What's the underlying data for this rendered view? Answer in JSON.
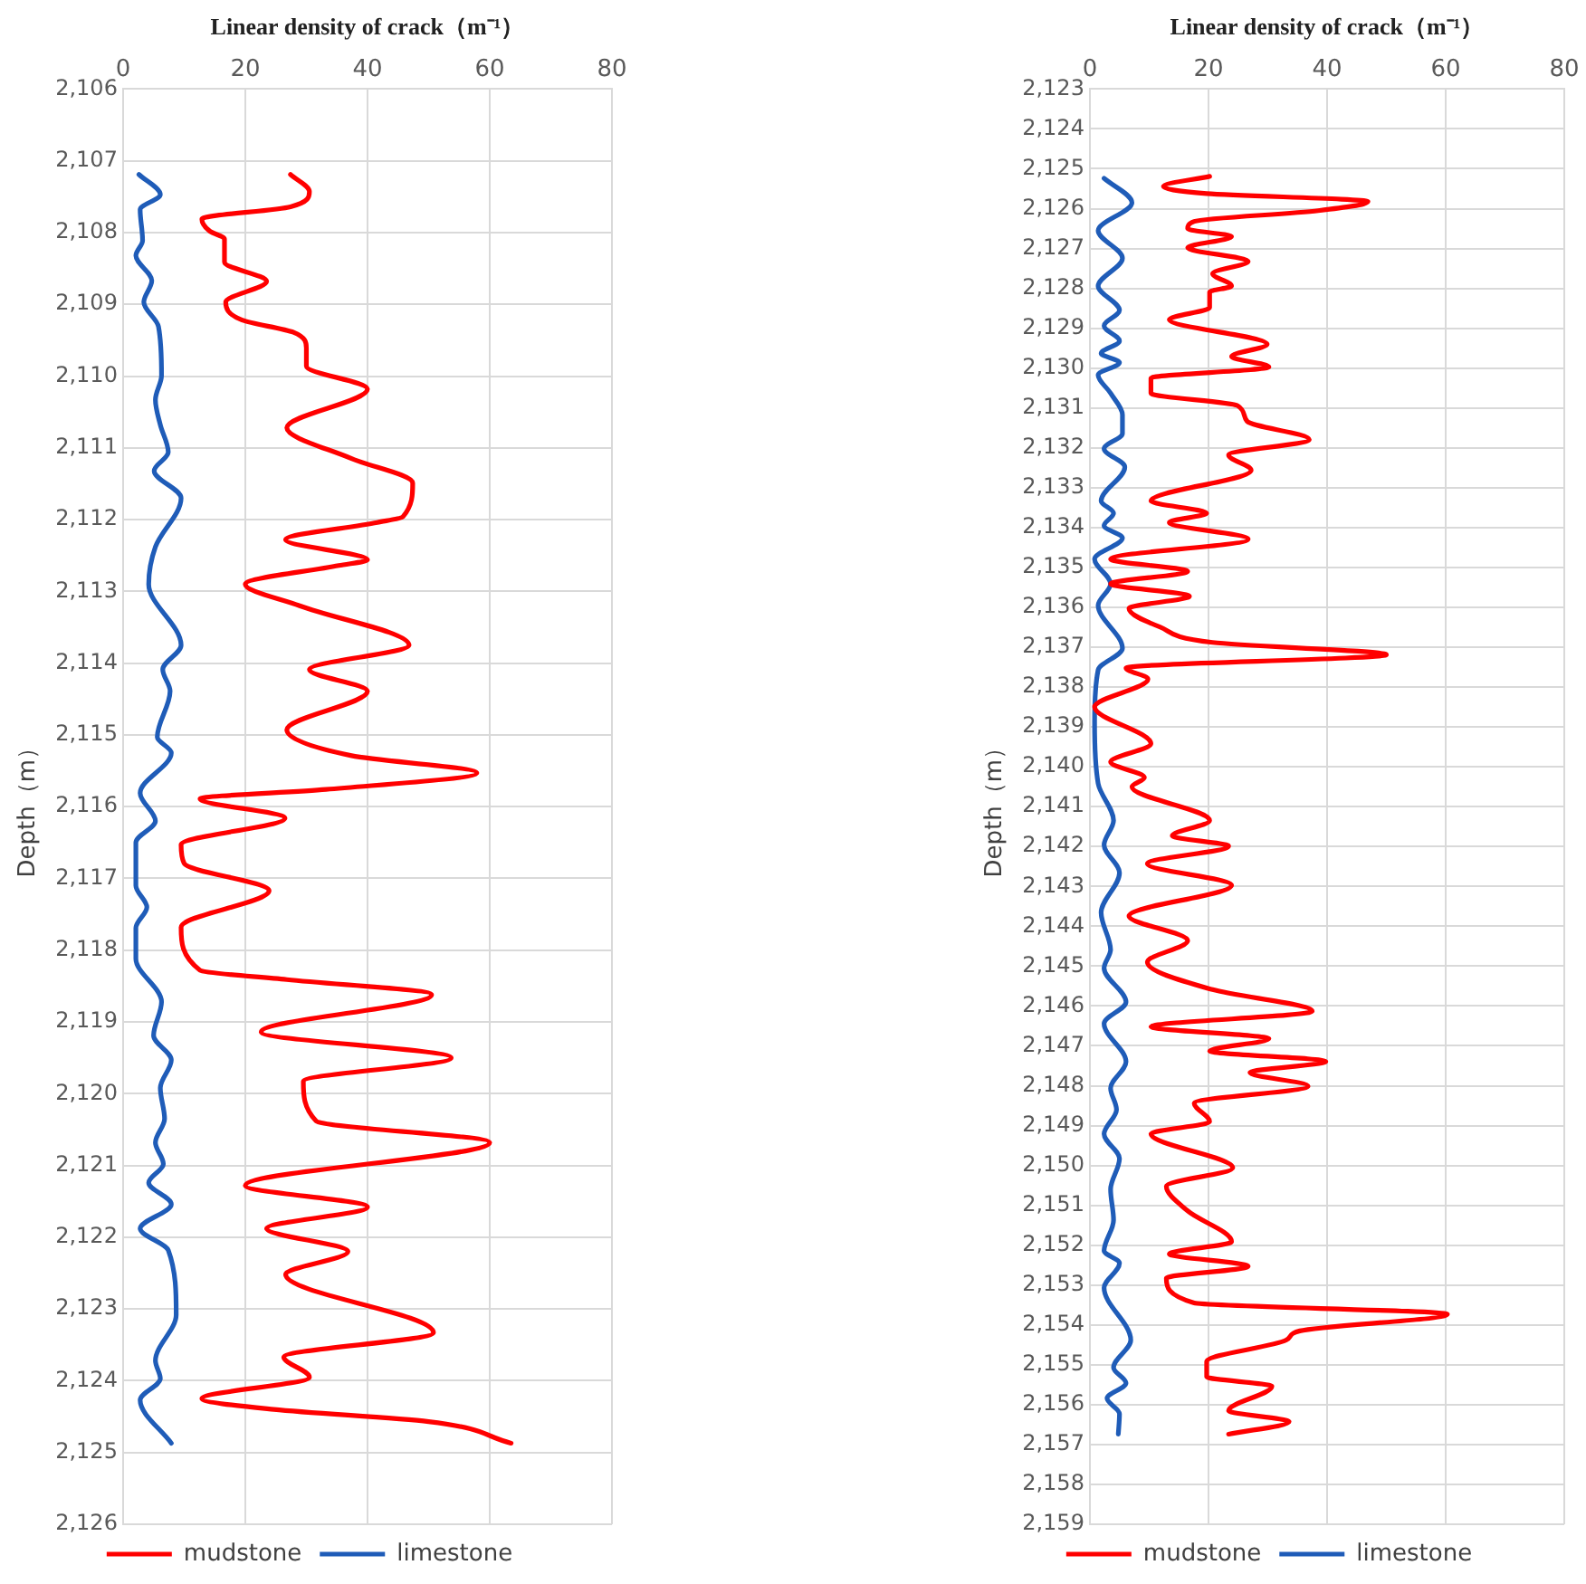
{
  "chart_data": [
    {
      "type": "line",
      "xlabel": "Linear density of crack（m⁻¹）",
      "ylabel": "Depth（m）",
      "xlim": [
        0,
        80
      ],
      "xticks": [
        0,
        20,
        40,
        60,
        80
      ],
      "ylim": [
        2126,
        2106
      ],
      "yticks": [
        {
          "value": 2106,
          "label": "2,106"
        },
        {
          "value": 2107,
          "label": "2,107"
        },
        {
          "value": 2108,
          "label": "2,108"
        },
        {
          "value": 2109,
          "label": "2,109"
        },
        {
          "value": 2110,
          "label": "2,110"
        },
        {
          "value": 2111,
          "label": "2,111"
        },
        {
          "value": 2112,
          "label": "2,112"
        },
        {
          "value": 2113,
          "label": "2,113"
        },
        {
          "value": 2114,
          "label": "2,114"
        },
        {
          "value": 2115,
          "label": "2,115"
        },
        {
          "value": 2116,
          "label": "2,116"
        },
        {
          "value": 2117,
          "label": "2,117"
        },
        {
          "value": 2118,
          "label": "2,118"
        },
        {
          "value": 2119,
          "label": "2,119"
        },
        {
          "value": 2120,
          "label": "2,120"
        },
        {
          "value": 2121,
          "label": "2,121"
        },
        {
          "value": 2122,
          "label": "2,122"
        },
        {
          "value": 2123,
          "label": "2,123"
        },
        {
          "value": 2124,
          "label": "2,124"
        },
        {
          "value": 2125,
          "label": "2,125"
        },
        {
          "value": 2126,
          "label": "2,126"
        }
      ],
      "grid": true,
      "legend": "bottom",
      "marker": "none",
      "line_style": "solid",
      "series": [
        {
          "name": "mudstone",
          "color": "#ff0000",
          "x": [
            27.4,
            30.5,
            27.4,
            12.9,
            14.2,
            16.6,
            16.6,
            23.5,
            16.8,
            19.5,
            27.9,
            30,
            30,
            40,
            26.8,
            37.4,
            47.4,
            45.8,
            41.6,
            26.6,
            40,
            35.3,
            20,
            28.9,
            46.8,
            30.5,
            40,
            26.8,
            37.4,
            57.9,
            33.2,
            12.6,
            26.5,
            9.5,
            10,
            23.9,
            9.5,
            12.6,
            26.8,
            50.5,
            22.6,
            53.7,
            29.5,
            31.6,
            60,
            20,
            40,
            23.5,
            36.8,
            26.6,
            50.8,
            26.3,
            30.5,
            12.9,
            24.7,
            50,
            63.5
          ],
          "values": [
            2107.19,
            2107.43,
            2107.64,
            2107.81,
            2107.98,
            2108.09,
            2108.41,
            2108.68,
            2108.97,
            2109.22,
            2109.39,
            2109.61,
            2109.86,
            2110.18,
            2110.72,
            2111.15,
            2111.49,
            2111.96,
            2112.04,
            2112.28,
            2112.56,
            2112.64,
            2112.9,
            2113.2,
            2113.75,
            2114.09,
            2114.39,
            2114.93,
            2115.29,
            2115.53,
            2115.76,
            2115.89,
            2116.16,
            2116.53,
            2116.79,
            2117.17,
            2117.68,
            2118.28,
            2118.41,
            2118.62,
            2119.14,
            2119.5,
            2119.83,
            2120.38,
            2120.68,
            2121.28,
            2121.58,
            2121.88,
            2122.2,
            2122.52,
            2123.33,
            2123.67,
            2123.95,
            2124.25,
            2124.4,
            2124.57,
            2124.87
          ]
        },
        {
          "name": "limestone",
          "color": "#1f5cb8",
          "x": [
            2.6,
            6.1,
            2.8,
            3.2,
            2.1,
            4.7,
            3.4,
            5.8,
            6.3,
            5.3,
            6.1,
            7.4,
            5.1,
            9.5,
            5.3,
            4.2,
            9.5,
            6.5,
            7.7,
            5.6,
            7.9,
            2.8,
            5.3,
            2.1,
            2.1,
            3.9,
            2.1,
            2.1,
            6.3,
            5,
            7.9,
            6.1,
            6.8,
            5.3,
            6.6,
            4.2,
            7.9,
            2.8,
            7.4,
            8.7,
            5.3,
            6.1,
            2.8,
            7.9
          ],
          "values": [
            2107.19,
            2107.47,
            2107.68,
            2108.11,
            2108.32,
            2108.67,
            2108.97,
            2109.31,
            2109.99,
            2110.33,
            2110.68,
            2111.06,
            2111.32,
            2111.7,
            2112.38,
            2112.9,
            2113.75,
            2114.09,
            2114.39,
            2115.03,
            2115.25,
            2115.81,
            2116.2,
            2116.5,
            2117.1,
            2117.4,
            2117.69,
            2118.12,
            2118.72,
            2119.19,
            2119.53,
            2119.92,
            2120.35,
            2120.68,
            2120.98,
            2121.24,
            2121.54,
            2121.88,
            2122.18,
            2123.08,
            2123.72,
            2123.97,
            2124.27,
            2124.87
          ]
        }
      ]
    },
    {
      "type": "line",
      "xlabel": "Linear density of crack（m⁻¹）",
      "ylabel": "Depth（m）",
      "xlim": [
        0,
        80
      ],
      "xticks": [
        0,
        20,
        40,
        60,
        80
      ],
      "ylim": [
        2159,
        2123
      ],
      "yticks": [
        {
          "value": 2123,
          "label": "2,123"
        },
        {
          "value": 2124,
          "label": "2,124"
        },
        {
          "value": 2125,
          "label": "2,125"
        },
        {
          "value": 2126,
          "label": "2,126"
        },
        {
          "value": 2127,
          "label": "2,127"
        },
        {
          "value": 2128,
          "label": "2,128"
        },
        {
          "value": 2129,
          "label": "2,129"
        },
        {
          "value": 2130,
          "label": "2,130"
        },
        {
          "value": 2131,
          "label": "2,131"
        },
        {
          "value": 2132,
          "label": "2,132"
        },
        {
          "value": 2133,
          "label": "2,133"
        },
        {
          "value": 2134,
          "label": "2,134"
        },
        {
          "value": 2135,
          "label": "2,135"
        },
        {
          "value": 2136,
          "label": "2,136"
        },
        {
          "value": 2137,
          "label": "2,137"
        },
        {
          "value": 2138,
          "label": "2,138"
        },
        {
          "value": 2139,
          "label": "2,139"
        },
        {
          "value": 2140,
          "label": "2,140"
        },
        {
          "value": 2141,
          "label": "2,141"
        },
        {
          "value": 2142,
          "label": "2,142"
        },
        {
          "value": 2143,
          "label": "2,143"
        },
        {
          "value": 2144,
          "label": "2,144"
        },
        {
          "value": 2145,
          "label": "2,145"
        },
        {
          "value": 2146,
          "label": "2,146"
        },
        {
          "value": 2147,
          "label": "2,147"
        },
        {
          "value": 2148,
          "label": "2,148"
        },
        {
          "value": 2149,
          "label": "2,149"
        },
        {
          "value": 2150,
          "label": "2,150"
        },
        {
          "value": 2151,
          "label": "2,151"
        },
        {
          "value": 2152,
          "label": "2,152"
        },
        {
          "value": 2153,
          "label": "2,153"
        },
        {
          "value": 2154,
          "label": "2,154"
        },
        {
          "value": 2155,
          "label": "2,155"
        },
        {
          "value": 2156,
          "label": "2,156"
        },
        {
          "value": 2157,
          "label": "2,157"
        },
        {
          "value": 2158,
          "label": "2,158"
        },
        {
          "value": 2159,
          "label": "2,159"
        }
      ],
      "grid": true,
      "legend": "bottom",
      "marker": "none",
      "line_style": "solid",
      "series": [
        {
          "name": "mudstone",
          "color": "#ff0000",
          "x": [
            20.2,
            12.4,
            19.7,
            46.9,
            38.5,
            17.6,
            16.5,
            23.9,
            16.5,
            26.7,
            20.7,
            23.9,
            20.2,
            20.2,
            13.4,
            29.9,
            23.9,
            30.2,
            10.3,
            10.3,
            24.9,
            26.5,
            37,
            23.4,
            27.2,
            10.3,
            19.7,
            13.4,
            26.7,
            3.5,
            16.5,
            3.5,
            16.8,
            6.6,
            11.8,
            20.7,
            50,
            6.1,
            9.8,
            0.8,
            10.3,
            3.5,
            9.2,
            7.1,
            20.2,
            13.9,
            23.4,
            9.7,
            23.9,
            6.6,
            16.5,
            9.7,
            20.7,
            37.5,
            10.3,
            30.2,
            20.2,
            39.8,
            27,
            36.8,
            17.6,
            20.2,
            10.3,
            24.1,
            12.9,
            16.5,
            23.9,
            13.4,
            26.7,
            12.9,
            17.6,
            60.3,
            35.4,
            33.1,
            19.7,
            19.7,
            30.7,
            23.4,
            33.6,
            23.4
          ],
          "values": [
            2125.19,
            2125.44,
            2125.62,
            2125.82,
            2126.05,
            2126.32,
            2126.5,
            2126.7,
            2126.98,
            2127.32,
            2127.63,
            2127.94,
            2128.09,
            2128.48,
            2128.78,
            2129.4,
            2129.71,
            2129.97,
            2130.25,
            2130.63,
            2130.94,
            2131.33,
            2131.79,
            2132.18,
            2132.56,
            2133.33,
            2133.64,
            2133.87,
            2134.29,
            2134.79,
            2135.1,
            2135.41,
            2135.72,
            2136.03,
            2136.49,
            2136.88,
            2137.19,
            2137.52,
            2137.8,
            2138.5,
            2139.42,
            2139.88,
            2140.27,
            2140.5,
            2141.35,
            2141.73,
            2141.99,
            2142.43,
            2142.97,
            2143.74,
            2144.36,
            2144.9,
            2145.59,
            2146.13,
            2146.52,
            2146.82,
            2147.13,
            2147.39,
            2147.67,
            2148.01,
            2148.44,
            2148.9,
            2149.21,
            2150.06,
            2150.52,
            2151.14,
            2151.91,
            2152.22,
            2152.53,
            2152.83,
            2153.45,
            2153.73,
            2154.15,
            2154.38,
            2154.92,
            2155.3,
            2155.54,
            2156.15,
            2156.43,
            2156.74
          ]
        },
        {
          "name": "limestone",
          "color": "#1f5cb8",
          "x": [
            2.4,
            7.1,
            1.4,
            5.5,
            1.4,
            5,
            2.4,
            5,
            1.9,
            5,
            1.4,
            3.5,
            5.5,
            5.5,
            2.4,
            5.9,
            1.9,
            4,
            2.4,
            5.5,
            0.8,
            3.5,
            1.4,
            5.5,
            1.4,
            0.8,
            1.4,
            4,
            2.4,
            5,
            1.9,
            3.5,
            2.4,
            6.1,
            2.4,
            6.1,
            3.5,
            4.5,
            2.4,
            5,
            3.5,
            4,
            2.4,
            5,
            2.4,
            6.9,
            4,
            6.1,
            2.9,
            5,
            4.8
          ],
          "values": [
            2125.24,
            2125.85,
            2126.55,
            2127.24,
            2127.94,
            2128.55,
            2128.94,
            2129.32,
            2129.63,
            2129.86,
            2130.17,
            2130.63,
            2131.17,
            2131.64,
            2132.02,
            2132.48,
            2133.33,
            2133.64,
            2133.95,
            2134.26,
            2134.79,
            2135.41,
            2135.95,
            2137.03,
            2137.57,
            2138.88,
            2140.42,
            2141.35,
            2141.96,
            2142.66,
            2143.66,
            2144.59,
            2145.05,
            2145.9,
            2146.44,
            2147.4,
            2148.06,
            2148.6,
            2149.21,
            2149.83,
            2150.6,
            2151.37,
            2152.14,
            2152.45,
            2153.07,
            2154.38,
            2155.07,
            2155.46,
            2155.84,
            2156.23,
            2156.74
          ]
        }
      ]
    }
  ]
}
